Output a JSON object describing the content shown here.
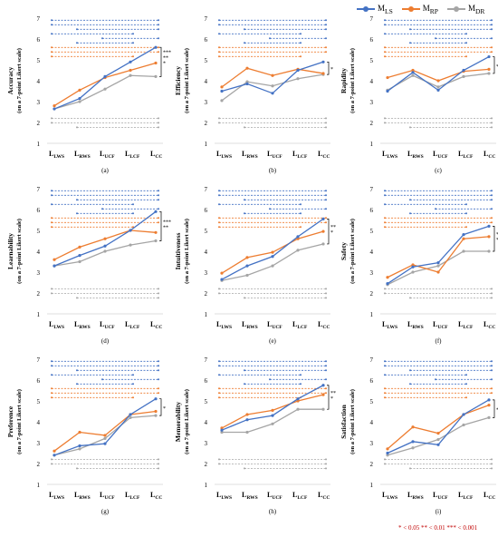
{
  "legend": [
    {
      "name": "M_LS",
      "main": "M",
      "sub": "LS",
      "color": "#4472c4"
    },
    {
      "name": "M_RP",
      "main": "M",
      "sub": "RP",
      "color": "#ed7d31"
    },
    {
      "name": "M_DR",
      "main": "M",
      "sub": "DR",
      "color": "#a5a5a5"
    }
  ],
  "significance_note": "* < 0.05  ** < 0.01  *** < 0.001",
  "chart_data": [
    {
      "type": "line",
      "panel_label": "(a)",
      "ylabel": "Accuracy",
      "ylabel_sub": "(on a 7-point Likert scale)",
      "categories": [
        "L_LWS",
        "L_RWS",
        "L_UCF",
        "L_LCF",
        "L_CC"
      ],
      "ylim": [
        1,
        7
      ],
      "yticks": [
        1,
        2,
        3,
        4,
        5,
        6,
        7
      ],
      "series": [
        {
          "name": "M_LS",
          "values": [
            2.65,
            3.15,
            4.2,
            4.9,
            5.6
          ]
        },
        {
          "name": "M_RP",
          "values": [
            2.8,
            3.55,
            4.15,
            4.5,
            4.85
          ]
        },
        {
          "name": "M_DR",
          "values": [
            2.65,
            3.0,
            3.6,
            4.25,
            4.2
          ]
        }
      ],
      "significance_brackets": [
        "*",
        "**",
        "***"
      ]
    },
    {
      "type": "line",
      "panel_label": "(b)",
      "ylabel": "Efficiency",
      "ylabel_sub": "(on a 7-point Likert scale)",
      "categories": [
        "L_LWS",
        "L_RWS",
        "L_UCF",
        "L_LCF",
        "L_CC"
      ],
      "ylim": [
        1,
        7
      ],
      "yticks": [
        1,
        2,
        3,
        4,
        5,
        6,
        7
      ],
      "series": [
        {
          "name": "M_LS",
          "values": [
            3.5,
            3.85,
            3.4,
            4.5,
            4.9
          ]
        },
        {
          "name": "M_RP",
          "values": [
            3.7,
            4.6,
            4.25,
            4.55,
            4.35
          ]
        },
        {
          "name": "M_DR",
          "values": [
            3.05,
            3.95,
            3.75,
            4.1,
            4.3
          ]
        }
      ],
      "significance_brackets": [
        "*"
      ]
    },
    {
      "type": "line",
      "panel_label": "(c)",
      "ylabel": "Rapidity",
      "ylabel_sub": "(on a 7-point Likert scale)",
      "categories": [
        "L_LWS",
        "L_RWS",
        "L_UCF",
        "L_LCF",
        "L_CC"
      ],
      "ylim": [
        1,
        7
      ],
      "yticks": [
        1,
        2,
        3,
        4,
        5,
        6,
        7
      ],
      "series": [
        {
          "name": "M_LS",
          "values": [
            3.5,
            4.4,
            3.55,
            4.5,
            5.15
          ]
        },
        {
          "name": "M_RP",
          "values": [
            4.15,
            4.5,
            4.0,
            4.45,
            4.55
          ]
        },
        {
          "name": "M_DR",
          "values": [
            3.55,
            4.25,
            3.7,
            4.2,
            4.35
          ]
        }
      ],
      "significance_brackets": [
        "*"
      ]
    },
    {
      "type": "line",
      "panel_label": "(d)",
      "ylabel": "Learnability",
      "ylabel_sub": "(on a 7-point Likert scale)",
      "categories": [
        "L_LWS",
        "L_RWS",
        "L_UCF",
        "L_LCF",
        "L_CC"
      ],
      "ylim": [
        1,
        7
      ],
      "yticks": [
        1,
        2,
        3,
        4,
        5,
        6,
        7
      ],
      "series": [
        {
          "name": "M_LS",
          "values": [
            3.3,
            3.8,
            4.25,
            5.0,
            5.9
          ]
        },
        {
          "name": "M_RP",
          "values": [
            3.6,
            4.2,
            4.6,
            5.0,
            4.9
          ]
        },
        {
          "name": "M_DR",
          "values": [
            3.3,
            3.5,
            4.0,
            4.3,
            4.5
          ]
        }
      ],
      "significance_brackets": [
        "**",
        "***"
      ]
    },
    {
      "type": "line",
      "panel_label": "(e)",
      "ylabel": "Intuitiveness",
      "ylabel_sub": "(on a 7-point Likert scale)",
      "categories": [
        "L_LWS",
        "L_RWS",
        "L_UCF",
        "L_LCF",
        "L_CC"
      ],
      "ylim": [
        1,
        7
      ],
      "yticks": [
        1,
        2,
        3,
        4,
        5,
        6,
        7
      ],
      "series": [
        {
          "name": "M_LS",
          "values": [
            2.65,
            3.3,
            3.75,
            4.7,
            5.55
          ]
        },
        {
          "name": "M_RP",
          "values": [
            2.95,
            3.7,
            3.95,
            4.6,
            4.95
          ]
        },
        {
          "name": "M_DR",
          "values": [
            2.6,
            2.85,
            3.3,
            4.05,
            4.35
          ]
        }
      ],
      "significance_brackets": [
        "*",
        "**"
      ]
    },
    {
      "type": "line",
      "panel_label": "(f)",
      "ylabel": "Safety",
      "ylabel_sub": "(on a 7-point Likert scale)",
      "categories": [
        "L_LWS",
        "L_RWS",
        "L_UCF",
        "L_LCF",
        "L_CC"
      ],
      "ylim": [
        1,
        7
      ],
      "yticks": [
        1,
        2,
        3,
        4,
        5,
        6,
        7
      ],
      "series": [
        {
          "name": "M_LS",
          "values": [
            2.45,
            3.25,
            3.45,
            4.8,
            5.2
          ]
        },
        {
          "name": "M_RP",
          "values": [
            2.75,
            3.35,
            3.0,
            4.6,
            4.7
          ]
        },
        {
          "name": "M_DR",
          "values": [
            2.4,
            3.0,
            3.3,
            4.0,
            4.0
          ]
        }
      ],
      "significance_brackets": [
        "*",
        "**"
      ]
    },
    {
      "type": "line",
      "panel_label": "(g)",
      "ylabel": "Preference",
      "ylabel_sub": "(on a 7-point Likert scale)",
      "categories": [
        "L_LWS",
        "L_RWS",
        "L_UCF",
        "L_LCF",
        "L_CC"
      ],
      "ylim": [
        1,
        7
      ],
      "yticks": [
        1,
        2,
        3,
        4,
        5,
        6,
        7
      ],
      "series": [
        {
          "name": "M_LS",
          "values": [
            2.4,
            2.85,
            2.95,
            4.35,
            5.1
          ]
        },
        {
          "name": "M_RP",
          "values": [
            2.6,
            3.5,
            3.35,
            4.35,
            4.5
          ]
        },
        {
          "name": "M_DR",
          "values": [
            2.4,
            2.7,
            3.2,
            4.2,
            4.3
          ]
        }
      ],
      "significance_brackets": [
        "*"
      ]
    },
    {
      "type": "line",
      "panel_label": "(h)",
      "ylabel": "Memorability",
      "ylabel_sub": "(on a 7-point Likert scale)",
      "categories": [
        "L_LWS",
        "L_RWS",
        "L_UCF",
        "L_LCF",
        "L_CC"
      ],
      "ylim": [
        1,
        7
      ],
      "yticks": [
        1,
        2,
        3,
        4,
        5,
        6,
        7
      ],
      "series": [
        {
          "name": "M_LS",
          "values": [
            3.6,
            4.1,
            4.3,
            5.1,
            5.75
          ]
        },
        {
          "name": "M_RP",
          "values": [
            3.7,
            4.35,
            4.55,
            5.0,
            5.3
          ]
        },
        {
          "name": "M_DR",
          "values": [
            3.5,
            3.5,
            3.9,
            4.6,
            4.6
          ]
        }
      ],
      "significance_brackets": [
        "*",
        "**"
      ]
    },
    {
      "type": "line",
      "panel_label": "(i)",
      "ylabel": "Satisfaction",
      "ylabel_sub": "(on a 7-point Likert scale)",
      "categories": [
        "L_LWS",
        "L_RWS",
        "L_UCF",
        "L_LCF",
        "L_CC"
      ],
      "ylim": [
        1,
        7
      ],
      "yticks": [
        1,
        2,
        3,
        4,
        5,
        6,
        7
      ],
      "series": [
        {
          "name": "M_LS",
          "values": [
            2.5,
            3.05,
            2.9,
            4.35,
            5.05
          ]
        },
        {
          "name": "M_RP",
          "values": [
            2.7,
            3.75,
            3.45,
            4.35,
            4.8
          ]
        },
        {
          "name": "M_DR",
          "values": [
            2.4,
            2.75,
            3.15,
            3.85,
            4.2
          ]
        }
      ],
      "significance_brackets": [
        "*"
      ]
    }
  ]
}
